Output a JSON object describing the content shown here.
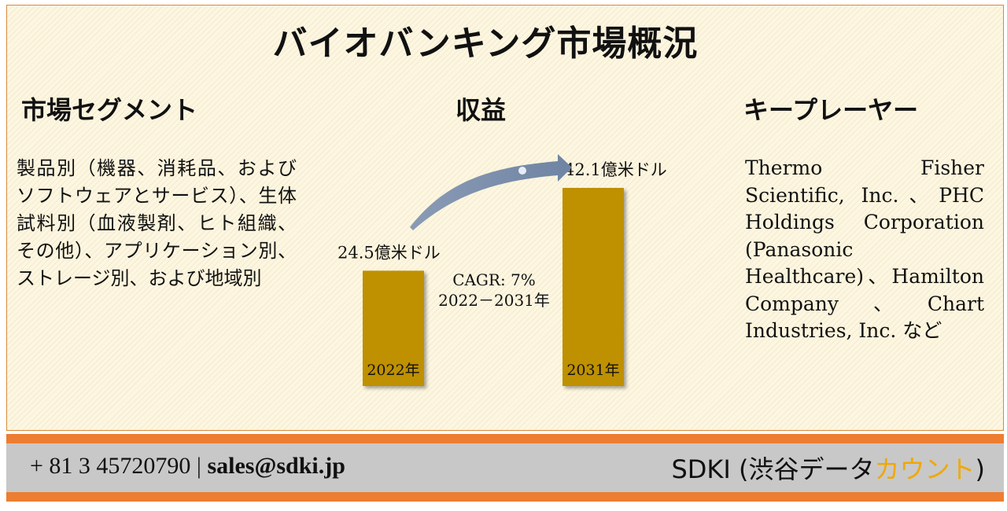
{
  "title": "バイオバンキング市場概況",
  "segments": {
    "heading": "市場セグメント",
    "text": "製品別（機器、消耗品、およびソフトウェアとサービス）、生体試料別（血液製剤、ヒト組織、その他）、アプリケーション別、ストレージ別、および地域別"
  },
  "revenue": {
    "heading": "収益",
    "cagr_line1": "CAGR: 7%",
    "cagr_line2": "2022－2031年"
  },
  "key_players": {
    "heading": "キープレーヤー",
    "text": "Thermo Fisher Scientific, Inc.、PHC Holdings Corporation (Panasonic Healthcare)、Hamilton Company、Chart Industries, Inc. など"
  },
  "chart_data": {
    "type": "bar",
    "categories": [
      "2022年",
      "2031年"
    ],
    "values": [
      24.5,
      42.1
    ],
    "value_labels": [
      "24.5億米ドル",
      "42.1億米ドル"
    ],
    "unit": "億米ドル",
    "bar_color": "#bf9000"
  },
  "footer": {
    "phone": "+ 81 3 45720790",
    "separator": "|",
    "email": "sales@sdki.jp",
    "brand_prefix": "SDKI (渋谷データ",
    "brand_accent": "カウント",
    "brand_suffix": ")",
    "accent_color": "#f0a800"
  }
}
